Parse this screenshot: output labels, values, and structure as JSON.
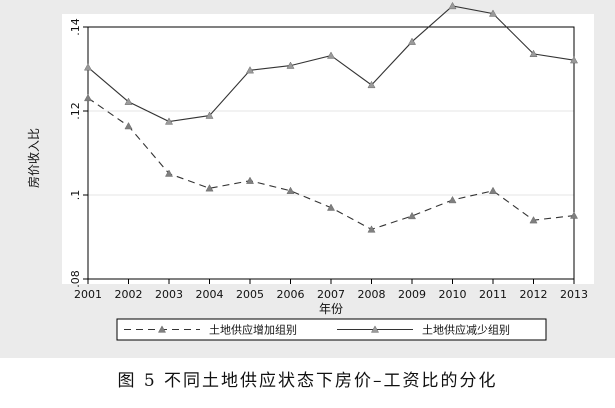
{
  "caption": "图 5  不同土地供应状态下房价–工资比的分化",
  "chart_data": {
    "type": "line",
    "title": "",
    "xlabel": "年份",
    "ylabel": "房价收入比",
    "x": [
      2001,
      2002,
      2003,
      2004,
      2005,
      2006,
      2007,
      2008,
      2009,
      2010,
      2011,
      2012,
      2013
    ],
    "xlim": [
      2001,
      2013
    ],
    "ylim": [
      0.08,
      0.14
    ],
    "yticks": [
      0.08,
      0.1,
      0.12,
      0.14
    ],
    "ytick_labels": [
      ".08",
      ".1",
      ".12",
      ".14"
    ],
    "grid": true,
    "legend_position": "bottom",
    "series": [
      {
        "name": "土地供应增加组别",
        "style": "dashed",
        "marker": "triangle",
        "color": "#333333",
        "marker_color": "#7f7f7f",
        "values": [
          0.1231,
          0.1164,
          0.1051,
          0.1016,
          0.1034,
          0.101,
          0.097,
          0.0918,
          0.095,
          0.0988,
          0.101,
          0.094,
          0.0951
        ]
      },
      {
        "name": "土地供应减少组别",
        "style": "solid",
        "marker": "triangle",
        "color": "#333333",
        "marker_color": "#9a9a9a",
        "values": [
          0.1304,
          0.1222,
          0.1175,
          0.1189,
          0.1297,
          0.1308,
          0.1332,
          0.1262,
          0.1365,
          0.145,
          0.1432,
          0.1336,
          0.1321
        ]
      }
    ]
  }
}
